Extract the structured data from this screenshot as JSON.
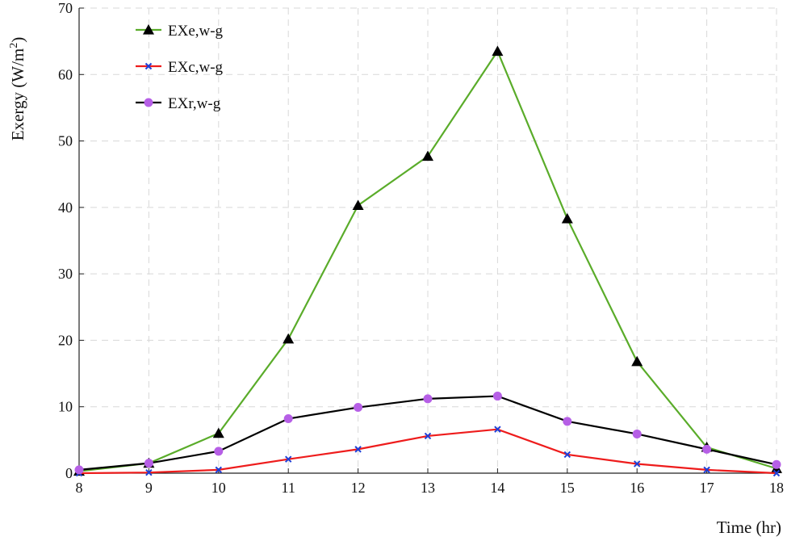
{
  "chart_data": {
    "type": "line",
    "title": "",
    "xlabel": "Time (hr)",
    "ylabel": "Exergy (W/m",
    "ylabel_sup": "2",
    "ylabel_close": ")",
    "x": [
      8,
      9,
      10,
      11,
      12,
      13,
      14,
      15,
      16,
      17,
      18
    ],
    "xlim": [
      8,
      18
    ],
    "ylim": [
      0,
      70
    ],
    "xticks": [
      "8",
      "9",
      "10",
      "11",
      "12",
      "13",
      "14",
      "15",
      "16",
      "17",
      "18"
    ],
    "yticks": [
      "0",
      "10",
      "20",
      "30",
      "40",
      "50",
      "60",
      "70"
    ],
    "grid": true,
    "legend_position": "top-left",
    "series": [
      {
        "name": "EXe,w-g",
        "color": "#5aac2a",
        "marker": "triangle",
        "values": [
          0.3,
          1.5,
          6.0,
          20.2,
          40.3,
          47.7,
          63.5,
          38.3,
          16.8,
          3.9,
          0.7
        ]
      },
      {
        "name": "EXc,w-g",
        "color": "#ee1c1c",
        "marker": "x",
        "values": [
          0.0,
          0.1,
          0.5,
          2.1,
          3.6,
          5.6,
          6.6,
          2.8,
          1.4,
          0.5,
          0.0
        ]
      },
      {
        "name": "EXr,w-g",
        "color": "#000000",
        "marker": "circle",
        "marker_color": "#b65fe6",
        "values": [
          0.5,
          1.5,
          3.3,
          8.2,
          9.9,
          11.2,
          11.6,
          7.8,
          5.9,
          3.6,
          1.3
        ]
      }
    ]
  }
}
